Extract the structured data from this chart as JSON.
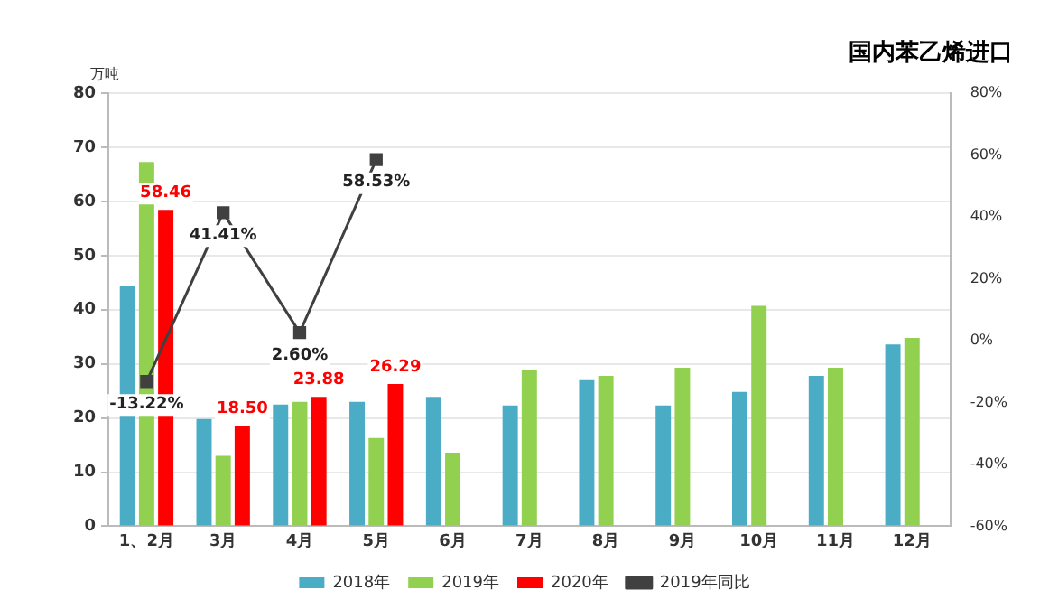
{
  "chart_data": {
    "type": "bar",
    "title": "国内苯乙烯进口",
    "ylabel": "万吨",
    "categories": [
      "1、2月",
      "3月",
      "4月",
      "5月",
      "6月",
      "7月",
      "8月",
      "9月",
      "10月",
      "11月",
      "12月"
    ],
    "series": [
      {
        "name": "2018年",
        "color": "#4bacc6",
        "values": [
          44.3,
          19.8,
          22.5,
          23.0,
          23.9,
          22.3,
          27.0,
          22.3,
          24.8,
          27.8,
          33.6
        ]
      },
      {
        "name": "2019年",
        "color": "#92d050",
        "values": [
          67.3,
          13.0,
          23.0,
          16.3,
          13.6,
          28.9,
          27.8,
          29.3,
          40.7,
          29.3,
          34.8
        ]
      },
      {
        "name": "2020年",
        "color": "#ff0000",
        "values": [
          58.46,
          18.5,
          23.88,
          26.29,
          null,
          null,
          null,
          null,
          null,
          null,
          null
        ],
        "value_labels": [
          "58.46",
          "18.50",
          "23.88",
          "26.29",
          null,
          null,
          null,
          null,
          null,
          null,
          null
        ]
      },
      {
        "name": "2019年同比",
        "type": "line",
        "axis": "y2",
        "color": "#404040",
        "values": [
          -13.22,
          41.41,
          2.6,
          58.53,
          null,
          null,
          null,
          null,
          null,
          null,
          null
        ],
        "value_labels": [
          "-13.22%",
          "41.41%",
          "2.60%",
          "58.53%",
          null,
          null,
          null,
          null,
          null,
          null,
          null
        ]
      }
    ],
    "ylim": [
      0,
      80
    ],
    "yticks": [
      0,
      10,
      20,
      30,
      40,
      50,
      60,
      70,
      80
    ],
    "y2lim": [
      -60,
      80
    ],
    "y2ticks": [
      {
        "value": -60,
        "label": "-60%"
      },
      {
        "value": -40,
        "label": "-40%"
      },
      {
        "value": -20,
        "label": "-20%"
      },
      {
        "value": 0,
        "label": "0%"
      },
      {
        "value": 20,
        "label": "20%"
      },
      {
        "value": 40,
        "label": "40%"
      },
      {
        "value": 60,
        "label": "60%"
      },
      {
        "value": 80,
        "label": "80%"
      }
    ],
    "grid": "y",
    "legend": "bottom",
    "marker": "square"
  }
}
